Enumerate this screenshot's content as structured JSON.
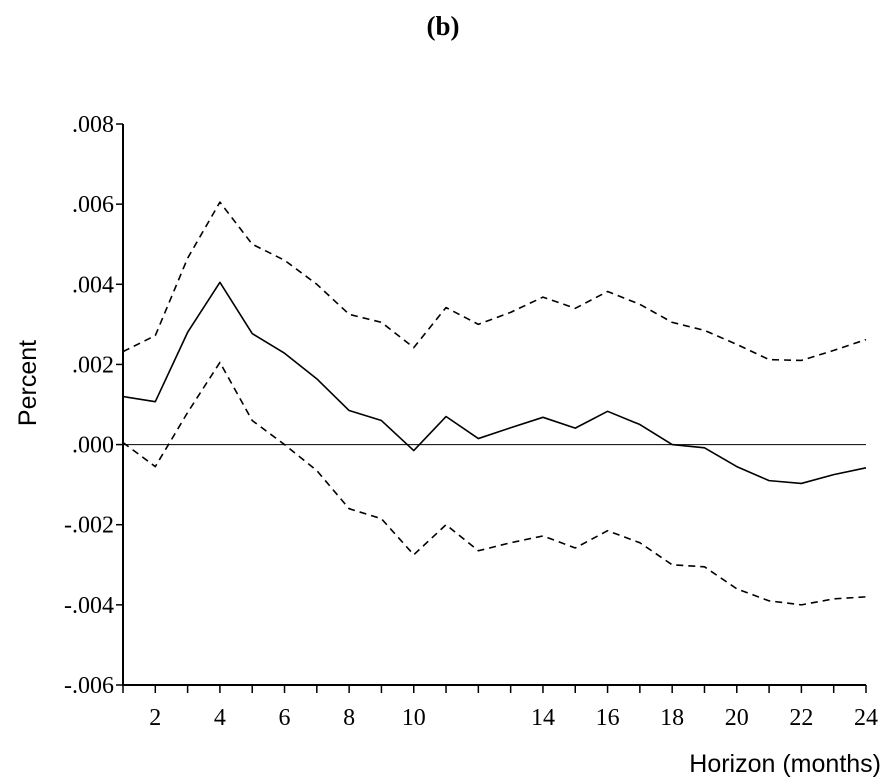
{
  "chart_data": {
    "type": "line",
    "title": "(b)",
    "xlabel": "Horizon (months)",
    "ylabel": "Percent",
    "xlim": [
      1,
      24
    ],
    "ylim": [
      -0.006,
      0.008
    ],
    "x": [
      1,
      2,
      3,
      4,
      5,
      6,
      7,
      8,
      9,
      10,
      11,
      12,
      13,
      14,
      15,
      16,
      17,
      18,
      19,
      20,
      21,
      22,
      23,
      24
    ],
    "x_tick_labels": [
      "2",
      "4",
      "6",
      "8",
      "10",
      "14",
      "16",
      "18",
      "20",
      "22",
      "24"
    ],
    "x_tick_values": [
      2,
      4,
      6,
      8,
      10,
      14,
      16,
      18,
      20,
      22,
      24
    ],
    "y_tick_labels": [
      ".008",
      ".006",
      ".004",
      ".002",
      ".000",
      "-.002",
      "-.004",
      "-.006"
    ],
    "y_tick_values": [
      0.008,
      0.006,
      0.004,
      0.002,
      0.0,
      -0.002,
      -0.004,
      -0.006
    ],
    "zero_line": true,
    "series": [
      {
        "style": "solid",
        "values": [
          0.0012,
          0.00107,
          0.0028,
          0.00405,
          0.00277,
          0.00228,
          0.00164,
          0.00085,
          0.0006,
          -0.00015,
          0.0007,
          0.00015,
          0.00042,
          0.00068,
          0.00041,
          0.00083,
          0.0005,
          0.0,
          -8e-05,
          -0.00055,
          -0.0009,
          -0.00097,
          -0.00075,
          -0.00058
        ]
      },
      {
        "style": "dashed",
        "values": [
          0.00232,
          0.00272,
          0.00465,
          0.00605,
          0.005,
          0.0046,
          0.004,
          0.00325,
          0.00305,
          0.00242,
          0.00342,
          0.003,
          0.0033,
          0.00368,
          0.0034,
          0.00382,
          0.0035,
          0.00305,
          0.00285,
          0.0025,
          0.00212,
          0.0021,
          0.00235,
          0.00262
        ]
      },
      {
        "style": "dashed",
        "values": [
          5e-05,
          -0.00055,
          0.0008,
          0.00205,
          0.0006,
          0.0,
          -0.00065,
          -0.0016,
          -0.00185,
          -0.00275,
          -0.002,
          -0.00265,
          -0.00245,
          -0.00228,
          -0.00258,
          -0.00215,
          -0.00245,
          -0.003,
          -0.00305,
          -0.0036,
          -0.0039,
          -0.004,
          -0.00385,
          -0.0038
        ]
      }
    ]
  }
}
